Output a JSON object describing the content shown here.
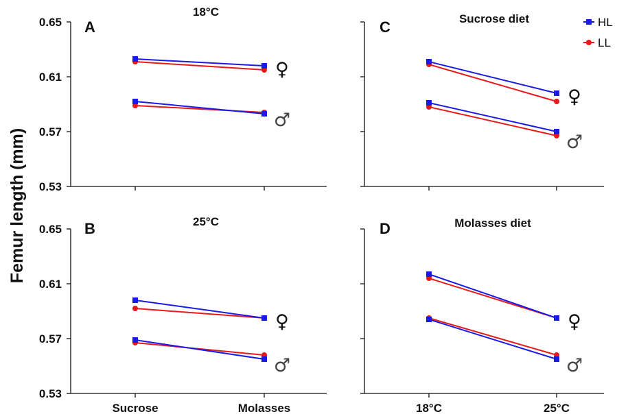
{
  "ylabel": "Femur length (mm)",
  "legend": [
    {
      "name": "HL",
      "color": "#1a1ae6"
    },
    {
      "name": "LL",
      "color": "#e61a1a"
    }
  ],
  "symbols": {
    "female": "♀",
    "male": "♂"
  },
  "chart_data": [
    {
      "type": "line",
      "letter": "A",
      "title": "18°C",
      "categories": [
        "Sucrose",
        "Molasses"
      ],
      "ylim": [
        0.53,
        0.65
      ],
      "yticks": [
        "0.53",
        "0.57",
        "0.61",
        "0.65"
      ],
      "series": [
        {
          "name": "HL",
          "sex": "female",
          "values": [
            0.623,
            0.618
          ]
        },
        {
          "name": "LL",
          "sex": "female",
          "values": [
            0.621,
            0.615
          ]
        },
        {
          "name": "HL",
          "sex": "male",
          "values": [
            0.592,
            0.583
          ]
        },
        {
          "name": "LL",
          "sex": "male",
          "values": [
            0.589,
            0.584
          ]
        }
      ]
    },
    {
      "type": "line",
      "letter": "B",
      "title": "25°C",
      "categories": [
        "Sucrose",
        "Molasses"
      ],
      "ylim": [
        0.53,
        0.65
      ],
      "yticks": [
        "0.53",
        "0.57",
        "0.61",
        "0.65"
      ],
      "series": [
        {
          "name": "HL",
          "sex": "female",
          "values": [
            0.598,
            0.585
          ]
        },
        {
          "name": "LL",
          "sex": "female",
          "values": [
            0.592,
            0.585
          ]
        },
        {
          "name": "HL",
          "sex": "male",
          "values": [
            0.569,
            0.555
          ]
        },
        {
          "name": "LL",
          "sex": "male",
          "values": [
            0.567,
            0.558
          ]
        }
      ]
    },
    {
      "type": "line",
      "letter": "C",
      "title": "Sucrose diet",
      "categories": [
        "18°C",
        "25°C"
      ],
      "ylim": [
        0.53,
        0.65
      ],
      "yticks": [
        "0.53",
        "0.57",
        "0.61",
        "0.65"
      ],
      "series": [
        {
          "name": "HL",
          "sex": "female",
          "values": [
            0.621,
            0.598
          ]
        },
        {
          "name": "LL",
          "sex": "female",
          "values": [
            0.619,
            0.592
          ]
        },
        {
          "name": "HL",
          "sex": "male",
          "values": [
            0.591,
            0.57
          ]
        },
        {
          "name": "LL",
          "sex": "male",
          "values": [
            0.588,
            0.567
          ]
        }
      ]
    },
    {
      "type": "line",
      "letter": "D",
      "title": "Molasses diet",
      "categories": [
        "18°C",
        "25°C"
      ],
      "ylim": [
        0.53,
        0.65
      ],
      "yticks": [
        "0.53",
        "0.57",
        "0.61",
        "0.65"
      ],
      "series": [
        {
          "name": "HL",
          "sex": "female",
          "values": [
            0.617,
            0.585
          ]
        },
        {
          "name": "LL",
          "sex": "female",
          "values": [
            0.614,
            0.585
          ]
        },
        {
          "name": "HL",
          "sex": "male",
          "values": [
            0.584,
            0.555
          ]
        },
        {
          "name": "LL",
          "sex": "male",
          "values": [
            0.585,
            0.558
          ]
        }
      ]
    }
  ]
}
